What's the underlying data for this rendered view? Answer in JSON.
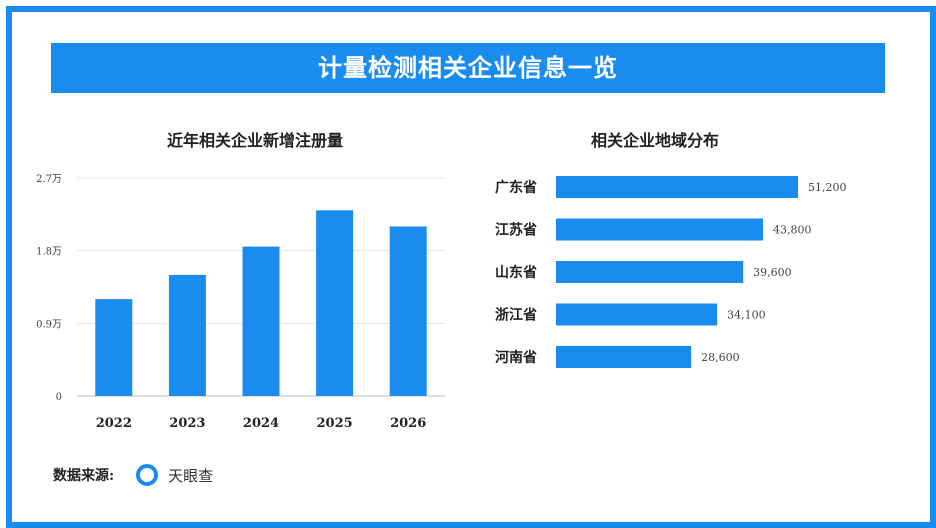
{
  "page_title": "计量检测相关企业信息一览",
  "source": {
    "label": "数据来源:",
    "name": "天眼查",
    "icon": "tianyancha-logo-icon"
  },
  "colors": {
    "accent": "#1a8cf0",
    "gridline": "#e6e6e6"
  },
  "chart_data": [
    {
      "type": "bar",
      "title": "近年相关企业新增注册量",
      "categories": [
        "2022",
        "2023",
        "2024",
        "2025",
        "2026"
      ],
      "values": [
        12000,
        15000,
        18500,
        23000,
        21000
      ],
      "ylim": [
        0,
        27000
      ],
      "yticks": [
        {
          "value": 0,
          "label": "0"
        },
        {
          "value": 9000,
          "label": "0.9万"
        },
        {
          "value": 18000,
          "label": "1.8万"
        },
        {
          "value": 27000,
          "label": "2.7万"
        }
      ],
      "grid": true
    },
    {
      "type": "bar",
      "orientation": "horizontal",
      "title": "相关企业地域分布",
      "categories": [
        "广东省",
        "江苏省",
        "山东省",
        "浙江省",
        "河南省"
      ],
      "values": [
        51200,
        43800,
        39600,
        34100,
        28600
      ],
      "value_labels": [
        "51,200",
        "43,800",
        "39,600",
        "34,100",
        "28,600"
      ]
    }
  ]
}
